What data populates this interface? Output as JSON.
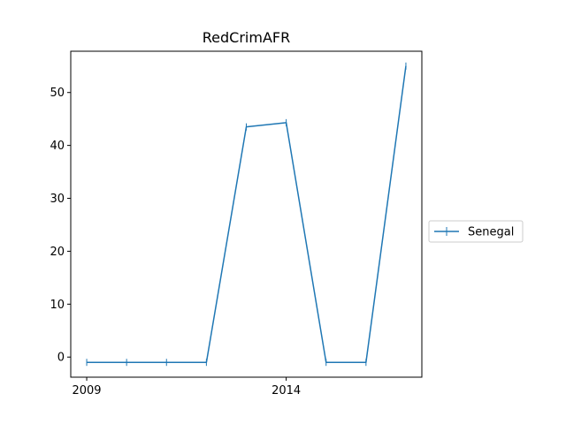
{
  "chart_data": {
    "type": "line",
    "title": "RedCrimAFR",
    "xlabel": "",
    "ylabel": "",
    "x": [
      2009,
      2010,
      2011,
      2012,
      2013,
      2014,
      2015,
      2016,
      2017
    ],
    "series": [
      {
        "name": "Senegal",
        "color": "#1f77b4",
        "marker": "vertical-tick",
        "values": [
          -1,
          -1,
          -1,
          -1,
          43.5,
          44.3,
          -1,
          -1,
          55
        ]
      }
    ],
    "xticks": [
      2009,
      2014
    ],
    "xtick_labels": [
      "2009",
      "2014"
    ],
    "yticks": [
      0,
      10,
      20,
      30,
      40,
      50
    ],
    "ytick_labels": [
      "0",
      "10",
      "20",
      "30",
      "40",
      "50"
    ],
    "xlim": [
      2008.6,
      2017.4
    ],
    "ylim": [
      -3.8,
      57.8
    ],
    "grid": false,
    "legend_position": "outside-right"
  }
}
